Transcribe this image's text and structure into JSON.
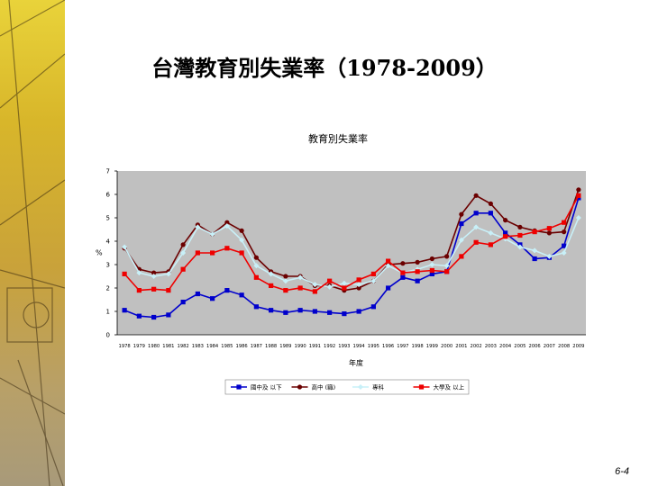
{
  "slide": {
    "title": "台灣教育別失業率（1978-2009）",
    "page_number": "6-4"
  },
  "chart_data": {
    "type": "line",
    "title": "教育別失業率",
    "xlabel": "年度",
    "ylabel": "%",
    "ylim": [
      0,
      7
    ],
    "yticks": [
      0,
      1,
      2,
      3,
      4,
      5,
      6,
      7
    ],
    "grid": false,
    "plot_background": "#c0c0c0",
    "legend_position": "bottom",
    "categories": [
      "1978",
      "1979",
      "1980",
      "1981",
      "1982",
      "1983",
      "1984",
      "1985",
      "1986",
      "1987",
      "1988",
      "1989",
      "1990",
      "1991",
      "1992",
      "1993",
      "1994",
      "1995",
      "1996",
      "1997",
      "1998",
      "1999",
      "2000",
      "2001",
      "2002",
      "2003",
      "2004",
      "2005",
      "2006",
      "2007",
      "2008",
      "2009"
    ],
    "series": [
      {
        "name": "國中及 以下",
        "color": "#0000cc",
        "marker": "square",
        "values": [
          1.05,
          0.8,
          0.75,
          0.85,
          1.4,
          1.75,
          1.55,
          1.9,
          1.7,
          1.2,
          1.05,
          0.95,
          1.05,
          1.0,
          0.95,
          0.9,
          1.0,
          1.2,
          2.0,
          2.45,
          2.3,
          2.6,
          2.7,
          4.75,
          5.2,
          5.2,
          4.35,
          3.85,
          3.25,
          3.3,
          3.8,
          5.85
        ]
      },
      {
        "name": "高中 (職)",
        "color": "#6b0000",
        "marker": "circle",
        "values": [
          3.7,
          2.8,
          2.65,
          2.7,
          3.85,
          4.7,
          4.3,
          4.8,
          4.45,
          3.3,
          2.7,
          2.5,
          2.5,
          2.1,
          2.1,
          1.9,
          2.0,
          2.3,
          3.0,
          3.05,
          3.1,
          3.25,
          3.35,
          5.15,
          5.95,
          5.6,
          4.9,
          4.6,
          4.45,
          4.35,
          4.4,
          6.2
        ]
      },
      {
        "name": "專科",
        "color": "#c8f0f8",
        "marker": "diamond",
        "values": [
          3.75,
          2.65,
          2.5,
          2.6,
          3.5,
          4.6,
          4.3,
          4.65,
          4.05,
          2.95,
          2.6,
          2.3,
          2.45,
          2.15,
          2.05,
          2.2,
          2.15,
          2.3,
          2.95,
          2.65,
          2.8,
          3.0,
          2.95,
          4.05,
          4.6,
          4.35,
          4.1,
          3.75,
          3.6,
          3.35,
          3.5,
          5.0
        ]
      },
      {
        "name": "大學及 以上",
        "color": "#ee0000",
        "marker": "square",
        "values": [
          2.6,
          1.9,
          1.95,
          1.9,
          2.8,
          3.5,
          3.5,
          3.7,
          3.5,
          2.45,
          2.1,
          1.9,
          2.0,
          1.85,
          2.3,
          2.0,
          2.35,
          2.6,
          3.15,
          2.65,
          2.7,
          2.75,
          2.7,
          3.35,
          3.95,
          3.85,
          4.2,
          4.25,
          4.4,
          4.55,
          4.8,
          5.95
        ]
      }
    ]
  }
}
